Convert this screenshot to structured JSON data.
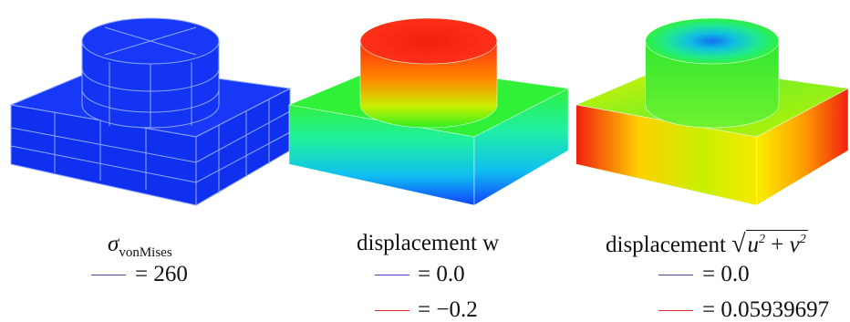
{
  "panels": [
    {
      "label": {
        "symbol": "σ",
        "subscript": "vonMises"
      },
      "legend": [
        {
          "color": "#5a3ca0",
          "text": "= 260"
        }
      ]
    },
    {
      "label": {
        "text": "displacement w"
      },
      "legend": [
        {
          "color": "#4a40c0",
          "text": "= 0.0"
        },
        {
          "color": "#e02828",
          "text": "= −0.2"
        }
      ]
    },
    {
      "label": {
        "text": "displacement",
        "radicand": {
          "a": "u",
          "a_sup": "2",
          "op": "+",
          "b": "v",
          "b_sup": "2"
        }
      },
      "legend": [
        {
          "color": "#5a3ca0",
          "text": "= 0.0"
        },
        {
          "color": "#e02828",
          "text": "= 0.05939697"
        }
      ]
    }
  ]
}
